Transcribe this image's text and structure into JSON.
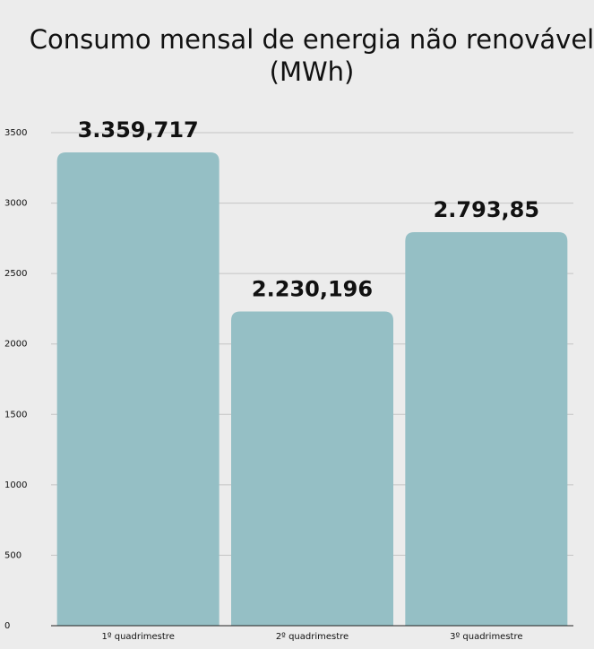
{
  "chart_data": {
    "type": "bar",
    "title": "Consumo mensal de energia não renovável (MWh)",
    "categories": [
      "1º quadrimestre",
      "2º quadrimestre",
      "3º quadrimestre"
    ],
    "values": [
      3359.717,
      2230.196,
      2793.85
    ],
    "value_labels": [
      "3.359,717",
      "2.230,196",
      "2.793,85"
    ],
    "color": "#95bfc5",
    "ylim": [
      0,
      3500
    ],
    "yticks": [
      0,
      500,
      1000,
      1500,
      2000,
      2500,
      3000,
      3500
    ],
    "grid": true
  }
}
